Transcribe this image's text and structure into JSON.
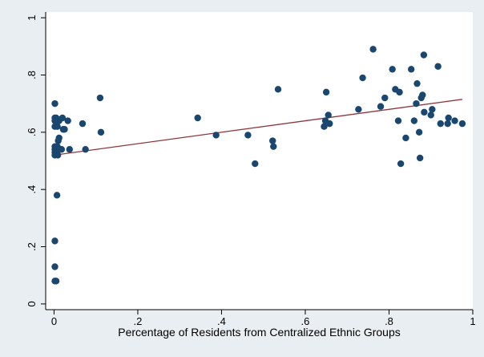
{
  "chart_data": {
    "type": "scatter",
    "title": "",
    "xlabel": "Percentage of Residents from Centralized Ethnic Groups",
    "ylabel": "",
    "xlim": [
      -0.02,
      1.0
    ],
    "ylim": [
      -0.02,
      1.02
    ],
    "grid": false,
    "x_ticks": [
      {
        "value": 0,
        "label": "0"
      },
      {
        "value": 0.2,
        "label": ".2"
      },
      {
        "value": 0.4,
        "label": ".4"
      },
      {
        "value": 0.6,
        "label": ".6"
      },
      {
        "value": 0.8,
        "label": ".8"
      },
      {
        "value": 1,
        "label": "1"
      }
    ],
    "y_ticks": [
      {
        "value": 0,
        "label": "0"
      },
      {
        "value": 0.2,
        "label": ".2"
      },
      {
        "value": 0.4,
        "label": ".4"
      },
      {
        "value": 0.6,
        "label": ".6"
      },
      {
        "value": 0.8,
        "label": ".8"
      },
      {
        "value": 1,
        "label": "1"
      }
    ],
    "colors": {
      "points": "#1a476f",
      "fit_line": "#90353b",
      "plot_bg": "#ffffff",
      "page_bg": "#e8eef2"
    },
    "points": [
      [
        0.002,
        0.7
      ],
      [
        0.002,
        0.65
      ],
      [
        0.002,
        0.64
      ],
      [
        0.002,
        0.62
      ],
      [
        0.002,
        0.55
      ],
      [
        0.002,
        0.54
      ],
      [
        0.002,
        0.53
      ],
      [
        0.002,
        0.52
      ],
      [
        0.002,
        0.22
      ],
      [
        0.002,
        0.13
      ],
      [
        0.002,
        0.08
      ],
      [
        0.005,
        0.08
      ],
      [
        0.005,
        0.65
      ],
      [
        0.006,
        0.63
      ],
      [
        0.007,
        0.38
      ],
      [
        0.008,
        0.62
      ],
      [
        0.008,
        0.55
      ],
      [
        0.009,
        0.52
      ],
      [
        0.01,
        0.57
      ],
      [
        0.012,
        0.58
      ],
      [
        0.012,
        0.64
      ],
      [
        0.014,
        0.54
      ],
      [
        0.018,
        0.54
      ],
      [
        0.02,
        0.65
      ],
      [
        0.022,
        0.61
      ],
      [
        0.025,
        0.61
      ],
      [
        0.033,
        0.64
      ],
      [
        0.037,
        0.54
      ],
      [
        0.068,
        0.63
      ],
      [
        0.075,
        0.54
      ],
      [
        0.11,
        0.72
      ],
      [
        0.112,
        0.6
      ],
      [
        0.343,
        0.65
      ],
      [
        0.387,
        0.59
      ],
      [
        0.463,
        0.59
      ],
      [
        0.48,
        0.49
      ],
      [
        0.522,
        0.57
      ],
      [
        0.524,
        0.55
      ],
      [
        0.535,
        0.75
      ],
      [
        0.645,
        0.62
      ],
      [
        0.648,
        0.64
      ],
      [
        0.65,
        0.74
      ],
      [
        0.655,
        0.66
      ],
      [
        0.658,
        0.63
      ],
      [
        0.727,
        0.68
      ],
      [
        0.737,
        0.79
      ],
      [
        0.762,
        0.89
      ],
      [
        0.78,
        0.69
      ],
      [
        0.79,
        0.72
      ],
      [
        0.808,
        0.82
      ],
      [
        0.815,
        0.75
      ],
      [
        0.822,
        0.64
      ],
      [
        0.825,
        0.74
      ],
      [
        0.828,
        0.49
      ],
      [
        0.84,
        0.58
      ],
      [
        0.853,
        0.82
      ],
      [
        0.86,
        0.64
      ],
      [
        0.865,
        0.7
      ],
      [
        0.867,
        0.77
      ],
      [
        0.872,
        0.6
      ],
      [
        0.874,
        0.51
      ],
      [
        0.877,
        0.72
      ],
      [
        0.88,
        0.73
      ],
      [
        0.883,
        0.87
      ],
      [
        0.884,
        0.67
      ],
      [
        0.9,
        0.66
      ],
      [
        0.903,
        0.68
      ],
      [
        0.917,
        0.83
      ],
      [
        0.923,
        0.63
      ],
      [
        0.94,
        0.63
      ],
      [
        0.942,
        0.65
      ],
      [
        0.957,
        0.64
      ],
      [
        0.975,
        0.63
      ]
    ],
    "fit_line": {
      "x": [
        0.0,
        0.975
      ],
      "y": [
        0.52,
        0.715
      ]
    }
  }
}
